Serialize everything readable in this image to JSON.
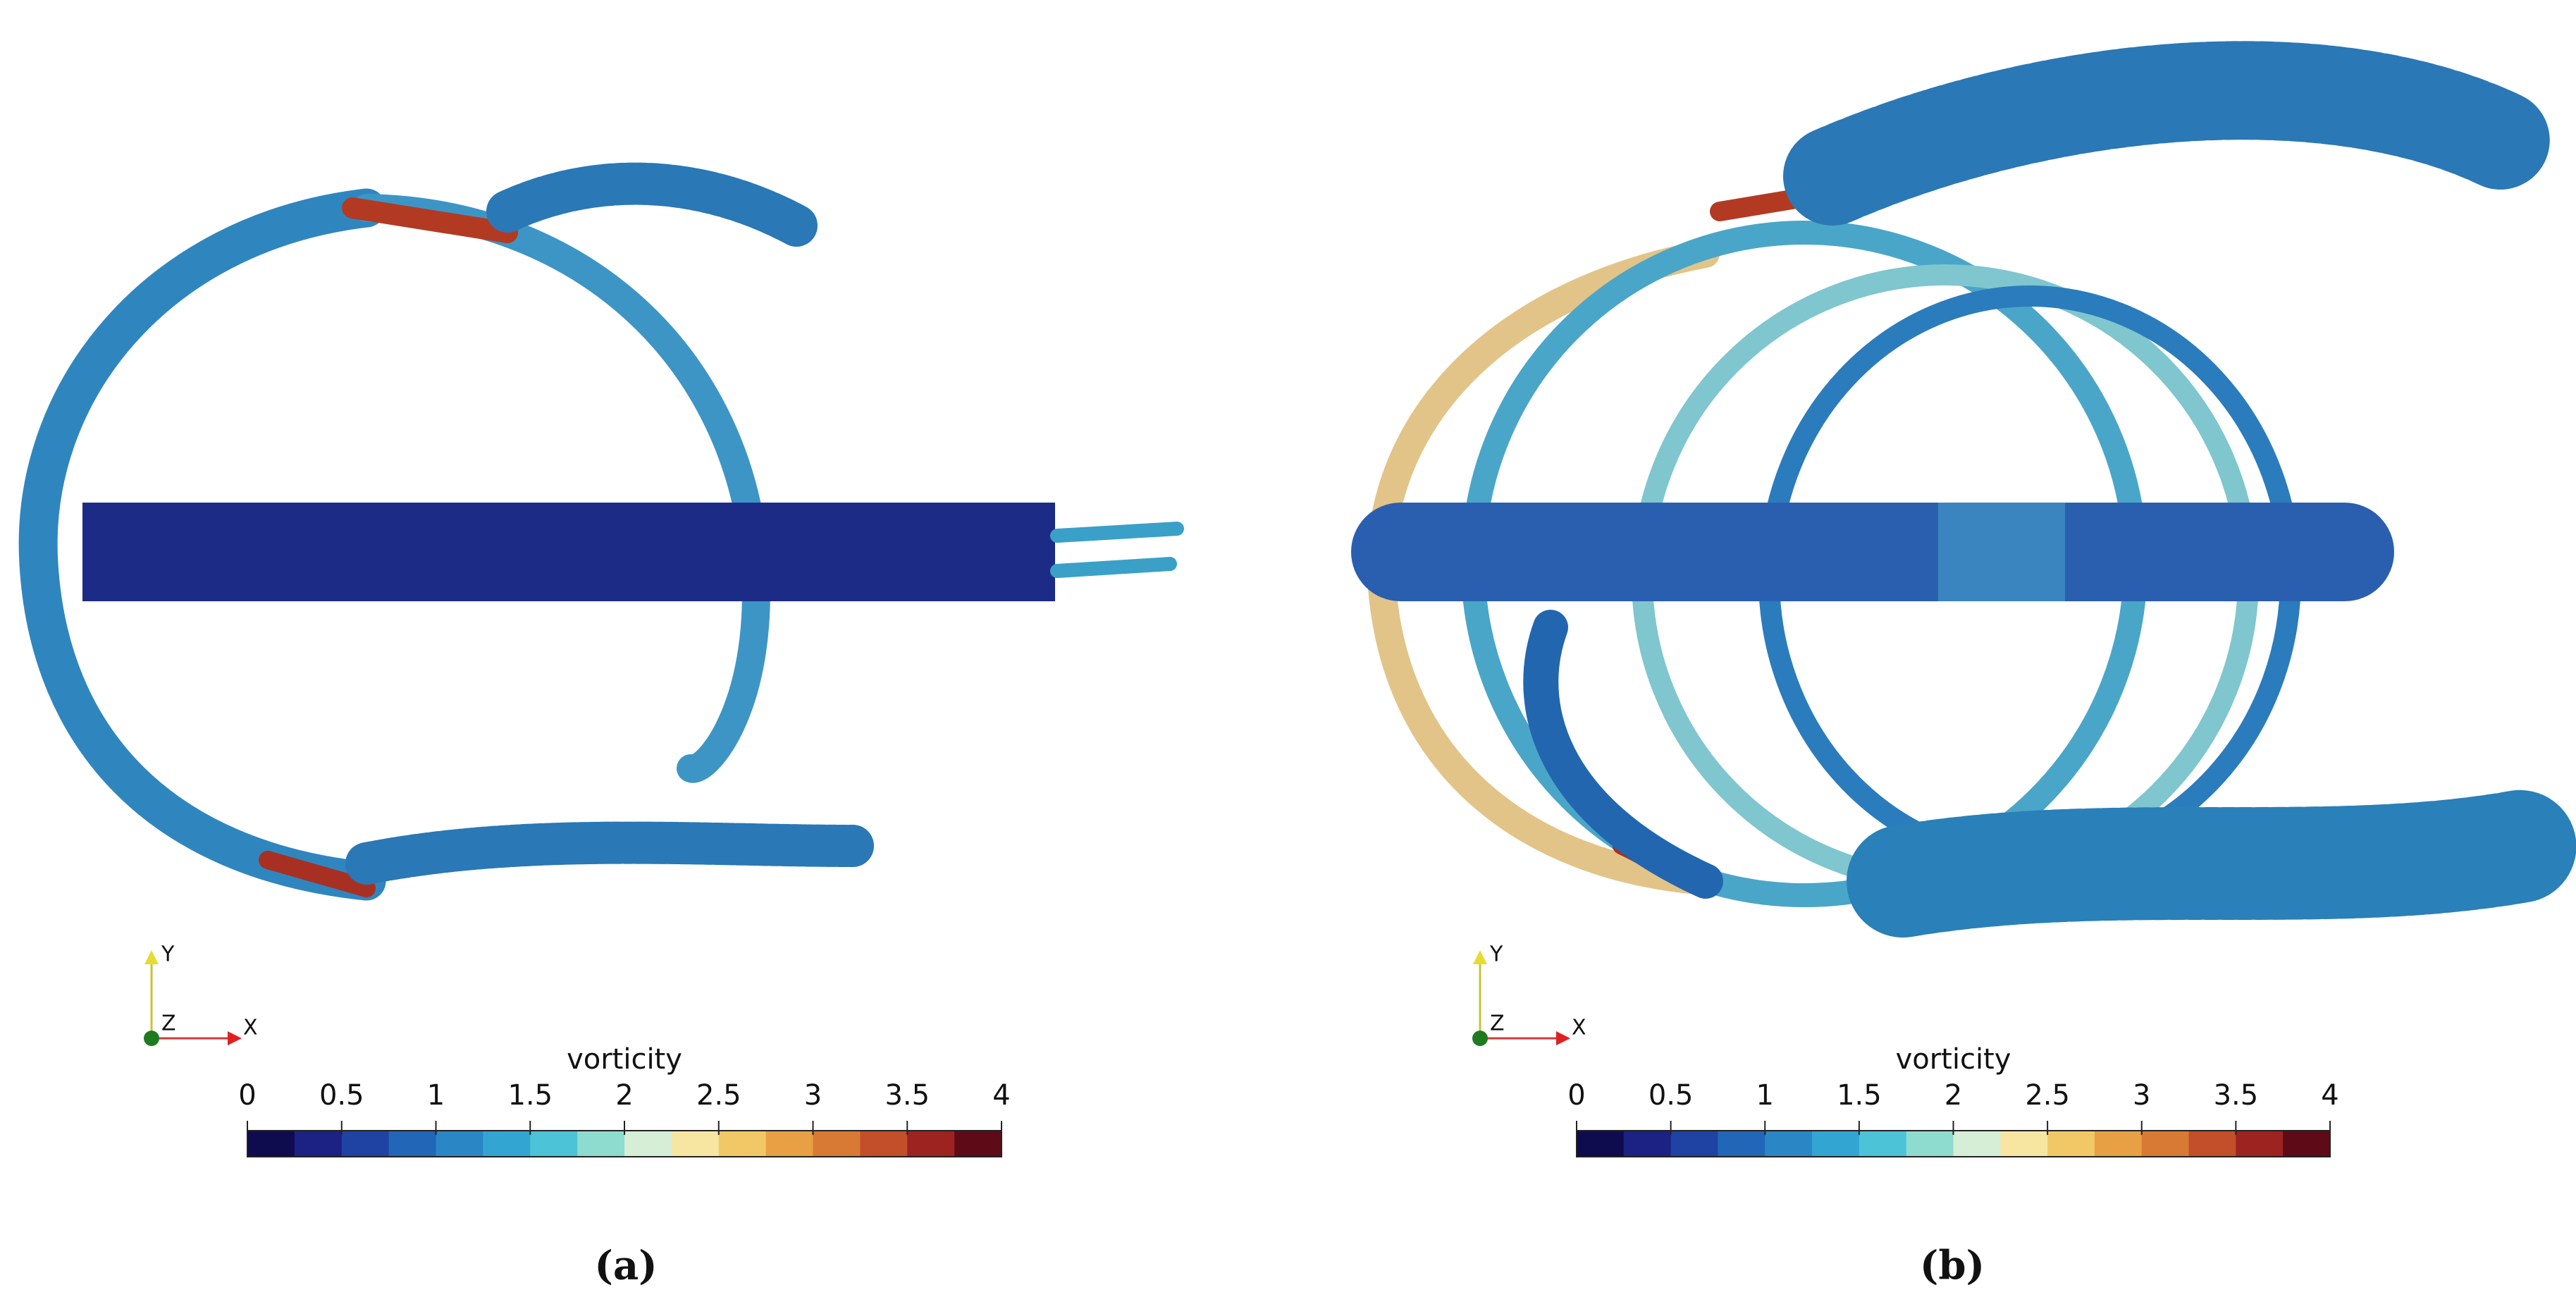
{
  "panels": [
    {
      "label": "(a)",
      "axes_triad": {
        "x": "X",
        "y": "Y",
        "z": "Z"
      },
      "colorbar": {
        "title": "vorticity",
        "range": [
          0,
          4
        ],
        "ticks": [
          0,
          0.5,
          1,
          1.5,
          2,
          2.5,
          3,
          3.5,
          4
        ]
      }
    },
    {
      "label": "(b)",
      "axes_triad": {
        "x": "X",
        "y": "Y",
        "z": "Z"
      },
      "colorbar": {
        "title": "vorticity",
        "range": [
          0,
          4
        ],
        "ticks": [
          0,
          0.5,
          1,
          1.5,
          2,
          2.5,
          3,
          3.5,
          4
        ]
      }
    }
  ],
  "colormap": [
    "#0e0b4f",
    "#1b2283",
    "#1f43a3",
    "#2166b7",
    "#2b86c6",
    "#33a5d2",
    "#4cc3d6",
    "#8edbcf",
    "#d6eed6",
    "#f6e6a2",
    "#f2c866",
    "#e7a043",
    "#d87a33",
    "#c24f2a",
    "#9c2320",
    "#5e0b17"
  ]
}
